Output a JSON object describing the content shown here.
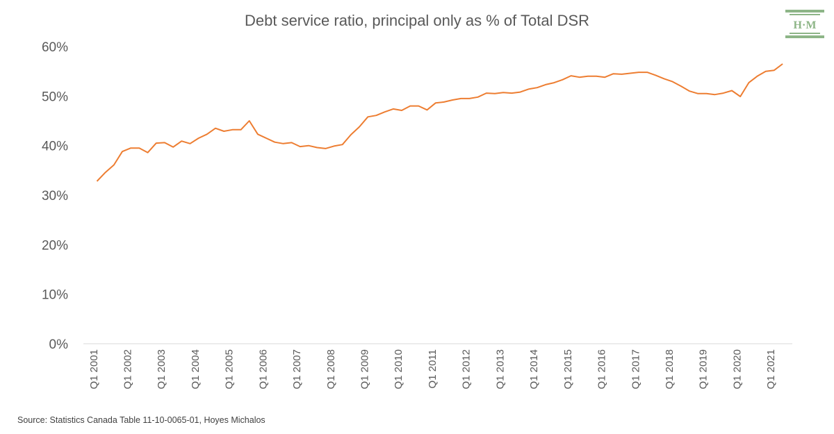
{
  "chart_data": {
    "type": "line",
    "title": "Debt service ratio, principal only as % of Total DSR",
    "source": "Source: Statistics Canada Table 11-10-0065-01, Hoyes Michalos",
    "ylim": [
      0,
      0.6
    ],
    "yticks": [
      0,
      0.1,
      0.2,
      0.3,
      0.4,
      0.5,
      0.6
    ],
    "ytick_labels": [
      "0%",
      "10%",
      "20%",
      "30%",
      "40%",
      "50%",
      "60%"
    ],
    "x_start": "Q1 2001",
    "xtick_labels": [
      "Q1 2001",
      "Q1 2002",
      "Q1 2003",
      "Q1 2004",
      "Q1 2005",
      "Q1 2006",
      "Q1 2007",
      "Q1 2008",
      "Q1 2009",
      "Q1 2010",
      "Q1 2011",
      "Q1 2012",
      "Q1 2013",
      "Q1 2014",
      "Q1 2015",
      "Q1 2016",
      "Q1 2017",
      "Q1 2018",
      "Q1 2019",
      "Q1 2020",
      "Q1 2021"
    ],
    "grid": false,
    "series": [
      {
        "color": "#ED7D31",
        "values": [
          0.328,
          0.346,
          0.361,
          0.388,
          0.395,
          0.395,
          0.386,
          0.405,
          0.406,
          0.397,
          0.409,
          0.404,
          0.415,
          0.423,
          0.435,
          0.429,
          0.432,
          0.432,
          0.45,
          0.423,
          0.415,
          0.407,
          0.404,
          0.406,
          0.398,
          0.4,
          0.396,
          0.394,
          0.399,
          0.402,
          0.422,
          0.438,
          0.458,
          0.461,
          0.468,
          0.474,
          0.471,
          0.48,
          0.48,
          0.472,
          0.486,
          0.488,
          0.492,
          0.495,
          0.495,
          0.498,
          0.506,
          0.505,
          0.507,
          0.506,
          0.508,
          0.514,
          0.517,
          0.523,
          0.527,
          0.533,
          0.541,
          0.538,
          0.54,
          0.54,
          0.538,
          0.545,
          0.544,
          0.546,
          0.548,
          0.548,
          0.542,
          0.535,
          0.529,
          0.52,
          0.51,
          0.505,
          0.505,
          0.503,
          0.506,
          0.511,
          0.499,
          0.527,
          0.54,
          0.55,
          0.552,
          0.565
        ]
      }
    ]
  },
  "logo": {
    "text": "H·M",
    "color": "#8DB587"
  }
}
